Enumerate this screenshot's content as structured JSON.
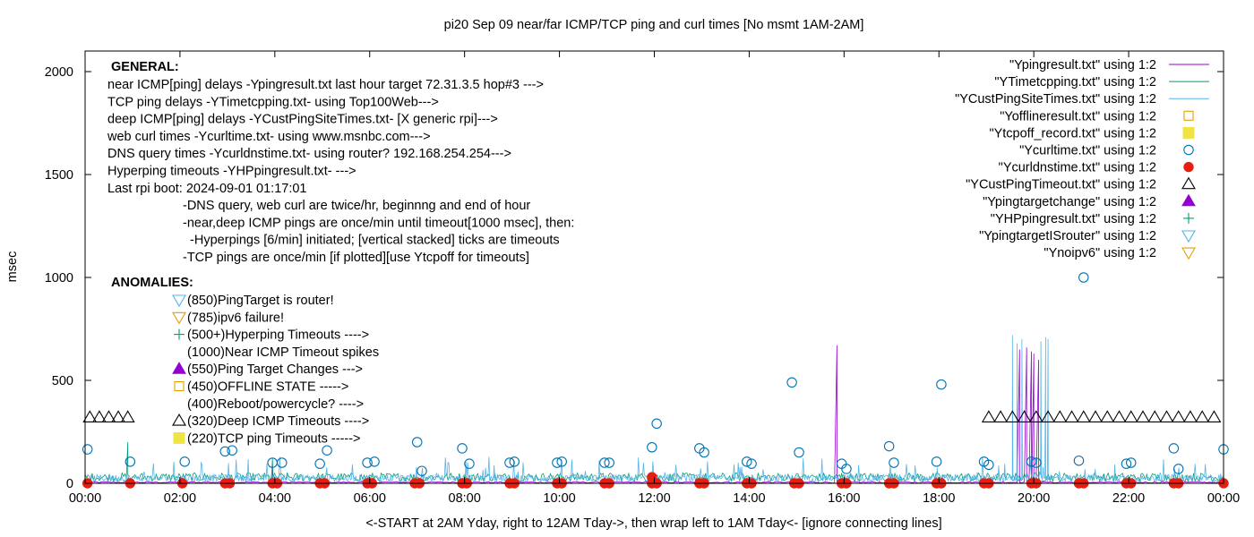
{
  "chart_data": {
    "type": "scatter",
    "title": "pi20 Sep 09  near/far ICMP/TCP ping and curl times [No msmt 1AM-2AM]",
    "ylabel": "msec",
    "xlabel": "<-START at 2AM Yday, right to 12AM Tday->, then wrap left to 1AM Tday<- [ignore connecting lines]",
    "xlim": [
      0,
      24
    ],
    "ylim": [
      0,
      2100
    ],
    "x_ticks": [
      {
        "x": 0,
        "label": "00:00"
      },
      {
        "x": 2,
        "label": "02:00"
      },
      {
        "x": 4,
        "label": "04:00"
      },
      {
        "x": 6,
        "label": "06:00"
      },
      {
        "x": 8,
        "label": "08:00"
      },
      {
        "x": 10,
        "label": "10:00"
      },
      {
        "x": 12,
        "label": "12:00"
      },
      {
        "x": 14,
        "label": "14:00"
      },
      {
        "x": 16,
        "label": "16:00"
      },
      {
        "x": 18,
        "label": "18:00"
      },
      {
        "x": 20,
        "label": "20:00"
      },
      {
        "x": 22,
        "label": "22:00"
      },
      {
        "x": 24,
        "label": "00:00"
      }
    ],
    "y_ticks": [
      {
        "y": 0,
        "label": "0"
      },
      {
        "y": 500,
        "label": "500"
      },
      {
        "y": 1000,
        "label": "1000"
      },
      {
        "y": 1500,
        "label": "1500"
      },
      {
        "y": 2000,
        "label": "2000"
      }
    ],
    "grid": false,
    "legend_position": "top-right",
    "legend": [
      {
        "label": "\"Ypingresult.txt\" using 1:2",
        "symbol": "line",
        "color": "#9400d3"
      },
      {
        "label": "\"YTimetcpping.txt\" using 1:2",
        "symbol": "line",
        "color": "#009e73"
      },
      {
        "label": "\"YCustPingSiteTimes.txt\" using 1:2",
        "symbol": "line",
        "color": "#56b4e9"
      },
      {
        "label": "\"Yofflineresult.txt\" using 1:2",
        "symbol": "open-square",
        "color": "#e69f00"
      },
      {
        "label": "\"Ytcpoff_record.txt\" using 1:2",
        "symbol": "filled-square",
        "color": "#f0e442"
      },
      {
        "label": "\"Ycurltime.txt\" using 1:2",
        "symbol": "open-circle",
        "color": "#0072b2"
      },
      {
        "label": "\"Ycurldnstime.txt\" using 1:2",
        "symbol": "filled-circle",
        "color": "#e51e10"
      },
      {
        "label": "\"YCustPingTimeout.txt\" using 1:2",
        "symbol": "open-triangle",
        "color": "#000000"
      },
      {
        "label": "\"Ypingtargetchange\" using 1:2",
        "symbol": "filled-triangle",
        "color": "#9400d3"
      },
      {
        "label": "\"YHPpingresult.txt\" using 1:2",
        "symbol": "plus",
        "color": "#009e73"
      },
      {
        "label": "\"YpingtargetISrouter\" using 1:2",
        "symbol": "open-triangle-down",
        "color": "#56b4e9"
      },
      {
        "label": "\"Ynoipv6\" using 1:2",
        "symbol": "open-triangle-down",
        "color": "#e69f00"
      }
    ],
    "general_notes": {
      "heading": "GENERAL:",
      "lines": [
        "near ICMP[ping] delays -Ypingresult.txt last hour target 72.31.3.5 hop#3 --->",
        "TCP ping delays -YTimetcpping.txt- using Top100Web--->",
        "deep ICMP[ping] delays -YCustPingSiteTimes.txt- [X generic rpi]--->",
        "web curl times -Ycurltime.txt- using www.msnbc.com--->",
        "DNS query times -Ycurldnstime.txt- using router? 192.168.254.254--->",
        "Hyperping timeouts -YHPpingresult.txt- --->",
        "Last rpi boot: 2024-09-01 01:17:01"
      ],
      "indented": [
        "-DNS query, web curl are twice/hr, beginnng and end of hour",
        "-near,deep ICMP pings are once/min until timeout[1000 msec], then:",
        "  -Hyperpings [6/min] initiated; [vertical stacked] ticks are timeouts",
        "-TCP pings are once/min [if plotted][use Ytcpoff for timeouts]"
      ]
    },
    "anomalies": {
      "heading": "ANOMALIES:",
      "items": [
        {
          "text": "(850)PingTarget is router!",
          "symbol": "open-triangle-down",
          "color": "#56b4e9"
        },
        {
          "text": "(785)ipv6 failure!",
          "symbol": "open-triangle-down",
          "color": "#e69f00"
        },
        {
          "text": "(500+)Hyperping Timeouts ---->",
          "symbol": "plus",
          "color": "#009e73"
        },
        {
          "text": "(1000)Near ICMP Timeout spikes",
          "symbol": "none",
          "color": "#000000"
        },
        {
          "text": "(550)Ping Target Changes --->",
          "symbol": "filled-triangle",
          "color": "#9400d3"
        },
        {
          "text": "(450)OFFLINE STATE ----->",
          "symbol": "open-square",
          "color": "#e69f00"
        },
        {
          "text": "(400)Reboot/powercycle? ---->",
          "symbol": "none",
          "color": "#000000"
        },
        {
          "text": "(320)Deep ICMP Timeouts ---->",
          "symbol": "open-triangle",
          "color": "#000000"
        },
        {
          "text": "(220)TCP ping Timeouts ----->",
          "symbol": "filled-square",
          "color": "#f0e442"
        }
      ]
    },
    "series": [
      {
        "name": "\"Ycurltime.txt\" using 1:2",
        "marker": "open-circle",
        "color": "#0072b2",
        "points": [
          [
            0.05,
            165
          ],
          [
            0.95,
            105
          ],
          [
            2.1,
            105
          ],
          [
            2.95,
            155
          ],
          [
            3.1,
            160
          ],
          [
            3.95,
            100
          ],
          [
            4.15,
            100
          ],
          [
            4.95,
            95
          ],
          [
            5.1,
            160
          ],
          [
            5.95,
            100
          ],
          [
            6.1,
            105
          ],
          [
            7.0,
            200
          ],
          [
            7.1,
            60
          ],
          [
            7.95,
            170
          ],
          [
            8.1,
            95
          ],
          [
            8.95,
            100
          ],
          [
            9.05,
            105
          ],
          [
            9.95,
            100
          ],
          [
            10.05,
            105
          ],
          [
            10.95,
            100
          ],
          [
            11.05,
            100
          ],
          [
            11.95,
            175
          ],
          [
            12.05,
            290
          ],
          [
            12.95,
            170
          ],
          [
            13.05,
            150
          ],
          [
            13.95,
            105
          ],
          [
            14.05,
            95
          ],
          [
            14.9,
            490
          ],
          [
            15.05,
            150
          ],
          [
            15.95,
            95
          ],
          [
            16.05,
            70
          ],
          [
            16.95,
            180
          ],
          [
            17.05,
            100
          ],
          [
            17.95,
            105
          ],
          [
            18.05,
            480
          ],
          [
            18.95,
            105
          ],
          [
            19.05,
            90
          ],
          [
            19.95,
            105
          ],
          [
            20.05,
            100
          ],
          [
            20.95,
            110
          ],
          [
            21.05,
            1000
          ],
          [
            21.95,
            95
          ],
          [
            22.05,
            100
          ],
          [
            22.95,
            170
          ],
          [
            23.05,
            70
          ],
          [
            24.0,
            165
          ]
        ]
      },
      {
        "name": "\"Ycurldnstime.txt\" using 1:2",
        "marker": "filled-circle",
        "color": "#e51e10",
        "x": [
          0.05,
          0.95,
          2.05,
          2.95,
          3.05,
          3.95,
          4.05,
          4.95,
          5.05,
          5.95,
          6.05,
          6.95,
          7.05,
          7.95,
          8.05,
          8.95,
          9.05,
          9.95,
          10.05,
          10.95,
          11.05,
          11.95,
          12.05,
          12.95,
          13.05,
          13.95,
          14.05,
          14.95,
          15.05,
          15.95,
          16.05,
          16.95,
          17.05,
          17.95,
          18.05,
          18.95,
          19.05,
          19.95,
          20.05,
          20.95,
          21.05,
          21.95,
          22.05,
          22.95,
          23.05,
          24.0
        ],
        "y_typical": 0,
        "outliers": [
          [
            11.95,
            30
          ]
        ]
      },
      {
        "name": "\"YCustPingTimeout.txt\" using 1:2",
        "marker": "open-triangle",
        "color": "#000000",
        "y": 320,
        "x": [
          0.1,
          0.3,
          0.5,
          0.7,
          0.9,
          19.05,
          19.3,
          19.55,
          19.8,
          20.05,
          20.3,
          20.55,
          20.8,
          21.05,
          21.3,
          21.55,
          21.8,
          22.05,
          22.3,
          22.55,
          22.8,
          23.05,
          23.3,
          23.55,
          23.8
        ]
      },
      {
        "name": "\"Ypingresult.txt\" using 1:2",
        "style": "line",
        "color": "#9400d3",
        "baseline": 5,
        "spikes": [
          [
            3.95,
            90
          ],
          [
            15.85,
            670
          ],
          [
            19.7,
            650
          ],
          [
            19.85,
            660
          ],
          [
            19.95,
            640
          ],
          [
            20.0,
            630
          ],
          [
            20.1,
            600
          ]
        ]
      },
      {
        "name": "\"YTimetcpping.txt\" using 1:2",
        "style": "line",
        "color": "#009e73",
        "baseline": 30,
        "spikes": [
          [
            0.9,
            200
          ],
          [
            3.95,
            120
          ],
          [
            15.95,
            50
          ]
        ]
      },
      {
        "name": "\"YCustPingSiteTimes.txt\" using 1:2",
        "style": "line",
        "color": "#56b4e9",
        "baseline": 25,
        "noise_max": 130,
        "spikes": [
          [
            19.55,
            720
          ],
          [
            19.65,
            680
          ],
          [
            19.75,
            700
          ],
          [
            20.15,
            690
          ],
          [
            20.25,
            710
          ],
          [
            20.3,
            700
          ]
        ]
      }
    ]
  }
}
